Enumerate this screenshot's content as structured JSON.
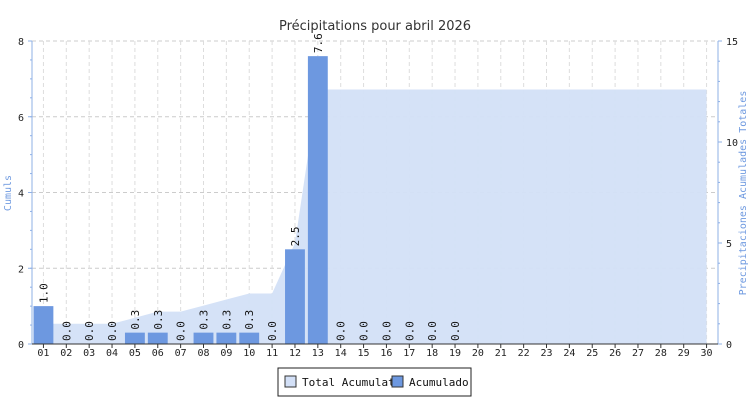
{
  "chart_data": {
    "type": "bar",
    "title": "Précipitations pour abril 2026",
    "ylabel": "Cumuls",
    "y2label": "Precipitaciones Acumulades Totales",
    "categories": [
      "01",
      "02",
      "03",
      "04",
      "05",
      "06",
      "07",
      "08",
      "09",
      "10",
      "11",
      "12",
      "13",
      "14",
      "15",
      "16",
      "17",
      "18",
      "19",
      "20",
      "21",
      "22",
      "23",
      "24",
      "25",
      "26",
      "27",
      "28",
      "29",
      "30"
    ],
    "ylim": [
      0,
      8
    ],
    "y2lim": [
      0,
      15
    ],
    "yticks": [
      "0",
      "2",
      "4",
      "6",
      "8"
    ],
    "y2ticks": [
      "0",
      "5",
      "10",
      "15"
    ],
    "grid": true,
    "legend_position": "bottom-center",
    "series": [
      {
        "name": "Total Acumulat",
        "kind": "area",
        "axis": "right",
        "color": "#d3e0f7",
        "values": [
          1.0,
          1.0,
          1.0,
          1.0,
          1.3,
          1.6,
          1.6,
          1.9,
          2.2,
          2.5,
          2.5,
          5.0,
          12.6,
          12.6,
          12.6,
          12.6,
          12.6,
          12.6,
          12.6,
          12.6,
          12.6,
          12.6,
          12.6,
          12.6,
          12.6,
          12.6,
          12.6,
          12.6,
          12.6,
          12.6
        ]
      },
      {
        "name": "Acumulado",
        "kind": "bar",
        "axis": "left",
        "color": "#6d98e0",
        "values": [
          1.0,
          0.0,
          0.0,
          0.0,
          0.3,
          0.3,
          0.0,
          0.3,
          0.3,
          0.3,
          0.0,
          2.5,
          7.6,
          0.0,
          0.0,
          0.0,
          0.0,
          0.0,
          0.0,
          null,
          null,
          null,
          null,
          null,
          null,
          null,
          null,
          null,
          null,
          null
        ],
        "labels": [
          "1.0",
          "0.0",
          "0.0",
          "0.0",
          "0.3",
          "0.3",
          "0.0",
          "0.3",
          "0.3",
          "0.3",
          "0.0",
          "2.5",
          "7.6",
          "0.0",
          "0.0",
          "0.0",
          "0.0",
          "0.0",
          "0.0",
          "",
          "",
          "",
          "",
          "",
          "",
          "",
          "",
          "",
          "",
          ""
        ]
      }
    ]
  }
}
